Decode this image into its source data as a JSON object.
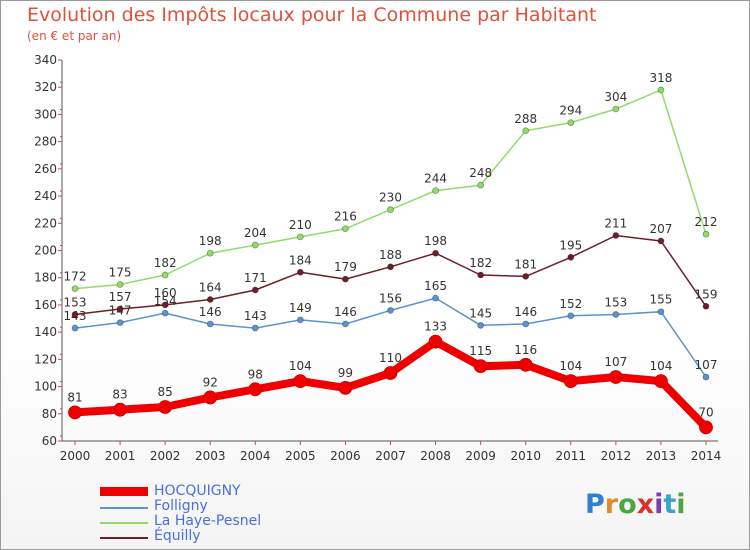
{
  "header": {
    "title": "Evolution des Impôts locaux pour la Commune par Habitant",
    "subtitle": "(en € et par an)"
  },
  "logo": {
    "letters": [
      {
        "ch": "P",
        "color": "#2f7fd6"
      },
      {
        "ch": "r",
        "color": "#e6892a"
      },
      {
        "ch": "o",
        "color": "#49a843"
      },
      {
        "ch": "x",
        "color": "#d6342a"
      },
      {
        "ch": "i",
        "color": "#7b3fb0"
      },
      {
        "ch": "t",
        "color": "#3fa2c7"
      },
      {
        "ch": "i",
        "color": "#49a843"
      }
    ]
  },
  "chart_data": {
    "type": "line",
    "title": "Evolution des Impôts locaux pour la Commune par Habitant",
    "subtitle": "(en € et par an)",
    "x": [
      "2000",
      "2001",
      "2002",
      "2003",
      "2004",
      "2005",
      "2006",
      "2007",
      "2008",
      "2009",
      "2010",
      "2011",
      "2012",
      "2013",
      "2014"
    ],
    "ylim": [
      60,
      340
    ],
    "yticks": [
      60,
      80,
      100,
      120,
      140,
      160,
      180,
      200,
      220,
      240,
      260,
      280,
      300,
      320,
      340
    ],
    "grid": false,
    "legend_position": "bottom-left",
    "series": [
      {
        "name": "HOCQUIGNY",
        "color": "#ee0000",
        "bold": true,
        "values": [
          81,
          83,
          85,
          92,
          98,
          104,
          99,
          110,
          133,
          115,
          116,
          104,
          107,
          104,
          70
        ]
      },
      {
        "name": "Folligny",
        "color": "#5b93cf",
        "bold": false,
        "values": [
          143,
          147,
          154,
          146,
          143,
          149,
          146,
          156,
          165,
          145,
          146,
          152,
          153,
          155,
          107
        ]
      },
      {
        "name": "La Haye-Pesnel",
        "color": "#8fdc6a",
        "bold": false,
        "values": [
          172,
          175,
          182,
          198,
          204,
          210,
          216,
          230,
          244,
          248,
          288,
          294,
          304,
          318,
          212
        ]
      },
      {
        "name": "Équilly",
        "color": "#6d1f24",
        "bold": false,
        "values": [
          153,
          157,
          160,
          164,
          171,
          184,
          179,
          188,
          198,
          182,
          181,
          195,
          211,
          207,
          159
        ]
      }
    ],
    "data_labels": [
      [
        "81",
        "83",
        "85",
        "92",
        "98",
        "104",
        "99",
        "110",
        "133",
        "115",
        "116",
        "104",
        "107",
        "104",
        "70"
      ],
      [
        "143",
        "147",
        "154",
        "146",
        "143",
        "149",
        "146",
        "156",
        "165",
        "145",
        "146",
        "152",
        "153",
        "155",
        "107"
      ],
      [
        "172",
        "175",
        "182",
        "198",
        "204",
        "210",
        "216",
        "230",
        "244",
        "248",
        "288",
        "294",
        "304",
        "318",
        "212"
      ],
      [
        "153",
        "157",
        "160",
        "164",
        "171",
        "184",
        "179",
        "188",
        "198",
        "182",
        "181",
        "195",
        "211",
        "207",
        "159"
      ]
    ]
  }
}
